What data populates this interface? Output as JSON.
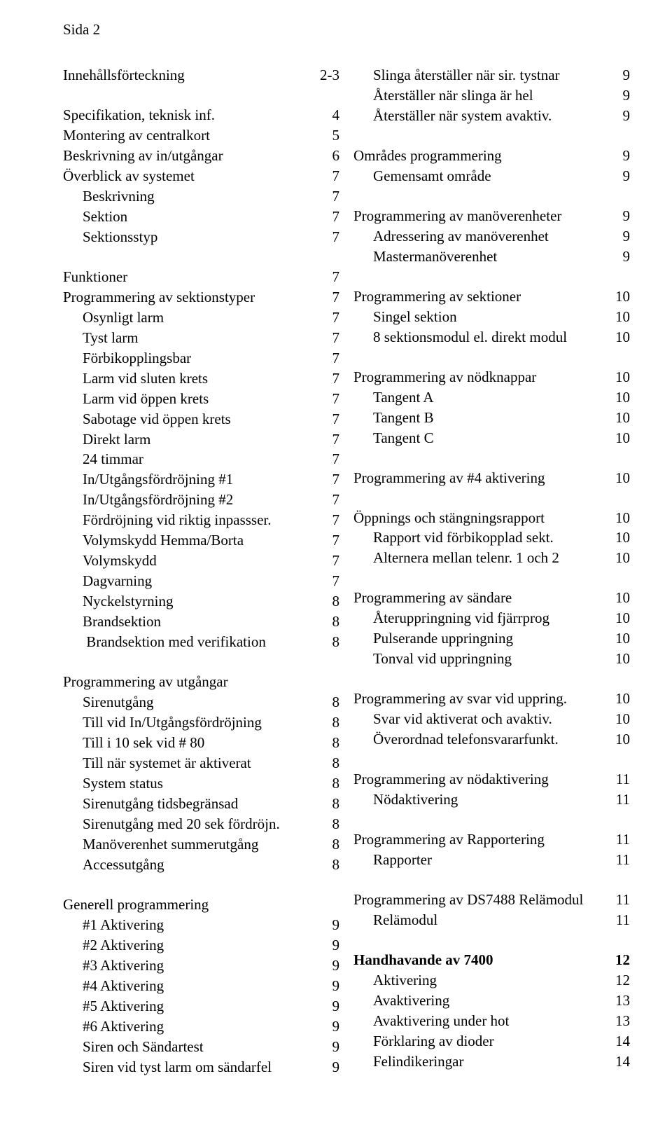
{
  "header": "Sida 2",
  "left": [
    {
      "label": "Innehållsförteckning",
      "num": "2-3",
      "indent": 0,
      "gapAfter": true
    },
    {
      "label": "Specifikation, teknisk inf.",
      "num": "4",
      "indent": 0
    },
    {
      "label": "Montering av centralkort",
      "num": "5",
      "indent": 0
    },
    {
      "label": "Beskrivning av in/utgångar",
      "num": "6",
      "indent": 0
    },
    {
      "label": "Överblick av systemet",
      "num": "7",
      "indent": 0
    },
    {
      "label": "Beskrivning",
      "num": "7",
      "indent": 1
    },
    {
      "label": "Sektion",
      "num": "7",
      "indent": 1
    },
    {
      "label": "Sektionsstyp",
      "num": "7",
      "indent": 1,
      "gapAfter": true
    },
    {
      "label": "Funktioner",
      "num": "7",
      "indent": 0
    },
    {
      "label": "Programmering av sektionstyper",
      "num": "7",
      "indent": 0
    },
    {
      "label": "Osynligt larm",
      "num": "7",
      "indent": 1
    },
    {
      "label": "Tyst larm",
      "num": "7",
      "indent": 1
    },
    {
      "label": "Förbikopplingsbar",
      "num": "7",
      "indent": 1
    },
    {
      "label": "Larm vid sluten krets",
      "num": "7",
      "indent": 1
    },
    {
      "label": "Larm vid öppen krets",
      "num": "7",
      "indent": 1
    },
    {
      "label": "Sabotage vid öppen krets",
      "num": "7",
      "indent": 1
    },
    {
      "label": "Direkt larm",
      "num": "7",
      "indent": 1
    },
    {
      "label": "24 timmar",
      "num": "7",
      "indent": 1
    },
    {
      "label": "In/Utgångsfördröjning #1",
      "num": "7",
      "indent": 1
    },
    {
      "label": "In/Utgångsfördröjning #2",
      "num": "7",
      "indent": 1
    },
    {
      "label": "Fördröjning vid riktig inpassser.",
      "num": "7",
      "indent": 1
    },
    {
      "label": "Volymskydd Hemma/Borta",
      "num": "7",
      "indent": 1
    },
    {
      "label": "Volymskydd",
      "num": "7",
      "indent": 1
    },
    {
      "label": "Dagvarning",
      "num": "7",
      "indent": 1
    },
    {
      "label": "Nyckelstyrning",
      "num": "8",
      "indent": 1
    },
    {
      "label": "Brandsektion",
      "num": "8",
      "indent": 1
    },
    {
      "label": " Brandsektion med verifikation",
      "num": "8",
      "indent": 1,
      "gapAfter": true
    },
    {
      "label": "Programmering av utgångar",
      "num": "",
      "indent": 0
    },
    {
      "label": "Sirenutgång",
      "num": "8",
      "indent": 1
    },
    {
      "label": "Till vid In/Utgångsfördröjning",
      "num": "8",
      "indent": 1
    },
    {
      "label": "Till i 10 sek vid # 80",
      "num": "8",
      "indent": 1
    },
    {
      "label": "Till när systemet är aktiverat",
      "num": "8",
      "indent": 1
    },
    {
      "label": "System status",
      "num": "8",
      "indent": 1
    },
    {
      "label": "Sirenutgång tidsbegränsad",
      "num": "8",
      "indent": 1
    },
    {
      "label": "Sirenutgång med 20 sek fördröjn.",
      "num": "8",
      "indent": 1
    },
    {
      "label": "Manöverenhet summerutgång",
      "num": "8",
      "indent": 1
    },
    {
      "label": "Accessutgång",
      "num": "8",
      "indent": 1,
      "gapAfter": true
    },
    {
      "label": "Generell programmering",
      "num": "",
      "indent": 0
    },
    {
      "label": "#1 Aktivering",
      "num": "9",
      "indent": 1
    },
    {
      "label": "#2 Aktivering",
      "num": "9",
      "indent": 1
    },
    {
      "label": "#3 Aktivering",
      "num": "9",
      "indent": 1
    },
    {
      "label": "#4 Aktivering",
      "num": "9",
      "indent": 1
    },
    {
      "label": "#5 Aktivering",
      "num": "9",
      "indent": 1
    },
    {
      "label": "#6 Aktivering",
      "num": "9",
      "indent": 1
    },
    {
      "label": "Siren och Sändartest",
      "num": "9",
      "indent": 1
    },
    {
      "label": "Siren vid tyst larm om sändarfel",
      "num": "9",
      "indent": 1
    }
  ],
  "right": [
    {
      "label": "Slinga återställer när sir. tystnar",
      "num": "9",
      "indent": 1
    },
    {
      "label": "Återställer när slinga är hel",
      "num": "9",
      "indent": 1
    },
    {
      "label": "Återställer när system avaktiv.",
      "num": "9",
      "indent": 1,
      "gapAfter": true
    },
    {
      "label": "Områdes programmering",
      "num": "9",
      "indent": 0
    },
    {
      "label": "Gemensamt område",
      "num": "9",
      "indent": 1,
      "gapAfter": true
    },
    {
      "label": "Programmering av manöverenheter",
      "num": "9",
      "indent": 0
    },
    {
      "label": "Adressering av manöverenhet",
      "num": "9",
      "indent": 1
    },
    {
      "label": "Mastermanöverenhet",
      "num": "9",
      "indent": 1,
      "gapAfter": true
    },
    {
      "label": "Programmering av sektioner",
      "num": "10",
      "indent": 0
    },
    {
      "label": "Singel sektion",
      "num": "10",
      "indent": 1
    },
    {
      "label": "8 sektionsmodul el. direkt modul",
      "num": "10",
      "indent": 1,
      "gapAfter": true
    },
    {
      "label": "Programmering av nödknappar",
      "num": "10",
      "indent": 0
    },
    {
      "label": "Tangent A",
      "num": "10",
      "indent": 1
    },
    {
      "label": "Tangent B",
      "num": "10",
      "indent": 1
    },
    {
      "label": "Tangent C",
      "num": "10",
      "indent": 1,
      "gapAfter": true
    },
    {
      "label": "Programmering av #4 aktivering",
      "num": "10",
      "indent": 0,
      "gapAfter": true
    },
    {
      "label": "Öppnings och stängningsrapport",
      "num": "10",
      "indent": 0
    },
    {
      "label": "Rapport vid förbikopplad sekt.",
      "num": "10",
      "indent": 1
    },
    {
      "label": "Alternera mellan telenr. 1 och 2",
      "num": "10",
      "indent": 1,
      "gapAfter": true
    },
    {
      "label": "Programmering av sändare",
      "num": "10",
      "indent": 0
    },
    {
      "label": "Återuppringning vid fjärrprog",
      "num": "10",
      "indent": 1
    },
    {
      "label": "Pulserande uppringning",
      "num": "10",
      "indent": 1
    },
    {
      "label": "Tonval vid uppringning",
      "num": "10",
      "indent": 1,
      "gapAfter": true
    },
    {
      "label": "Programmering av svar vid uppring.",
      "num": "10",
      "indent": 0
    },
    {
      "label": "Svar vid aktiverat och avaktiv.",
      "num": "10",
      "indent": 1
    },
    {
      "label": "Överordnad telefonsvararfunkt.",
      "num": "10",
      "indent": 1,
      "gapAfter": true
    },
    {
      "label": "Programmering av nödaktivering",
      "num": "11",
      "indent": 0
    },
    {
      "label": "Nödaktivering",
      "num": "11",
      "indent": 1,
      "gapAfter": true
    },
    {
      "label": "Programmering av Rapportering",
      "num": "11",
      "indent": 0
    },
    {
      "label": "Rapporter",
      "num": "11",
      "indent": 1,
      "gapAfter": true
    },
    {
      "label": "Programmering av DS7488 Relämodul",
      "num": "11",
      "indent": 0
    },
    {
      "label": "Relämodul",
      "num": "11",
      "indent": 1,
      "gapAfter": true
    },
    {
      "label": "Handhavande av 7400",
      "num": "12",
      "indent": 0,
      "bold": true
    },
    {
      "label": "Aktivering",
      "num": "12",
      "indent": 1
    },
    {
      "label": "Avaktivering",
      "num": "13",
      "indent": 1
    },
    {
      "label": "Avaktivering under hot",
      "num": "13",
      "indent": 1
    },
    {
      "label": "Förklaring av dioder",
      "num": "14",
      "indent": 1
    },
    {
      "label": "Felindikeringar",
      "num": "14",
      "indent": 1
    }
  ]
}
